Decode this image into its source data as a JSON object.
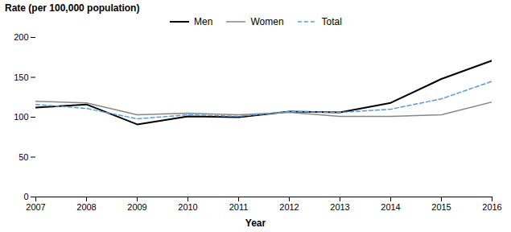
{
  "chart_data": {
    "type": "line",
    "x": [
      2007,
      2008,
      2009,
      2010,
      2011,
      2012,
      2013,
      2014,
      2015,
      2016
    ],
    "series": [
      {
        "name": "Men",
        "color": "#000000",
        "line_style": "solid",
        "values": [
          112,
          116,
          91,
          101,
          100,
          107,
          106,
          118,
          148,
          171
        ]
      },
      {
        "name": "Women",
        "color": "#888888",
        "line_style": "solid",
        "values": [
          120,
          118,
          103,
          105,
          103,
          106,
          101,
          101,
          103,
          119
        ]
      },
      {
        "name": "Total",
        "color": "#5b9bd5",
        "line_style": "dashed",
        "values": [
          116,
          111,
          98,
          103,
          101,
          107,
          106,
          110,
          123,
          145
        ]
      }
    ],
    "xlabel": "Year",
    "ylabel": "Rate (per 100,000 population)",
    "xlim": [
      2007,
      2016
    ],
    "xticks": [
      2007,
      2008,
      2009,
      2010,
      2011,
      2012,
      2013,
      2014,
      2015,
      2016
    ],
    "ylim": [
      0,
      200
    ],
    "yticks": [
      0,
      50,
      100,
      150,
      200
    ],
    "grid": false,
    "legend": "top"
  }
}
